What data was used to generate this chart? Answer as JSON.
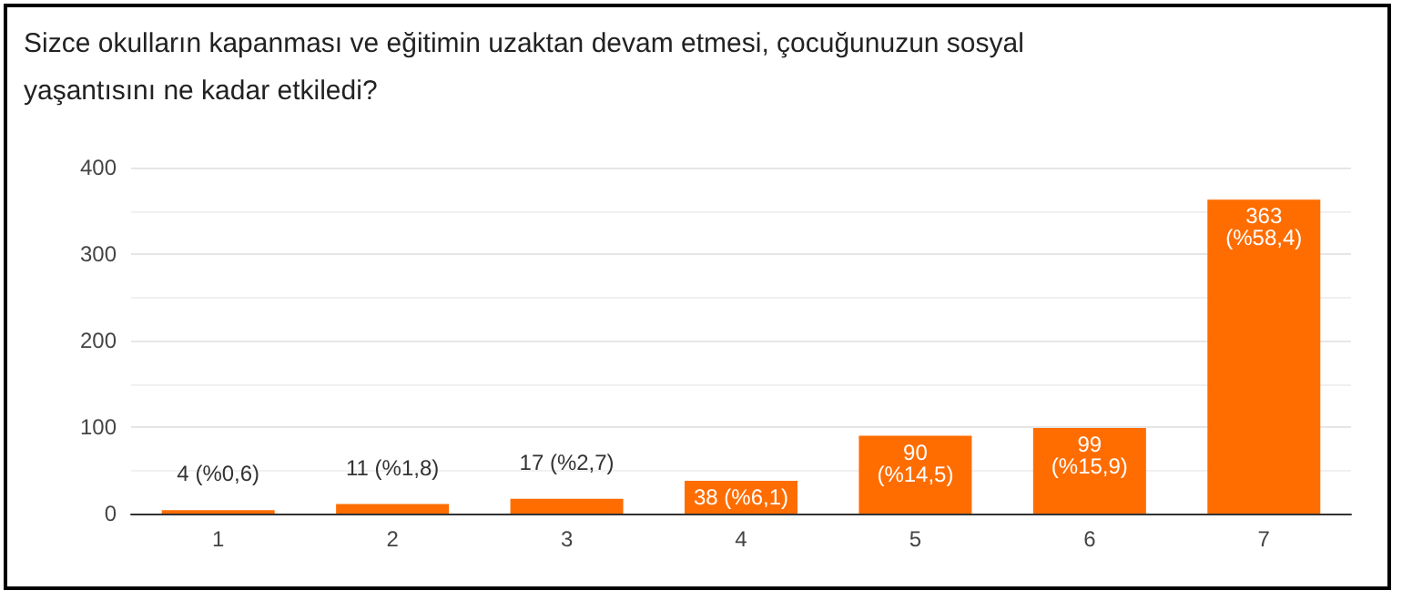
{
  "chart_data": {
    "type": "bar",
    "title": "Sizce okulların kapanması ve eğitimin uzaktan devam etmesi, çocuğunuzun sosyal yaşantısını ne kadar etkiledi?",
    "categories": [
      "1",
      "2",
      "3",
      "4",
      "5",
      "6",
      "7"
    ],
    "values": [
      4,
      11,
      17,
      38,
      90,
      99,
      363
    ],
    "value_labels": [
      "4 (%0,6)",
      "11 (%1,8)",
      "17 (%2,7)",
      "38 (%6,1)",
      "90 (%14,5)",
      "99 (%15,9)",
      "363 (%58,4)"
    ],
    "color": "#ff6d01",
    "ylim": [
      0,
      400
    ],
    "yticks": [
      0,
      100,
      200,
      300,
      400
    ],
    "grid": "y"
  }
}
